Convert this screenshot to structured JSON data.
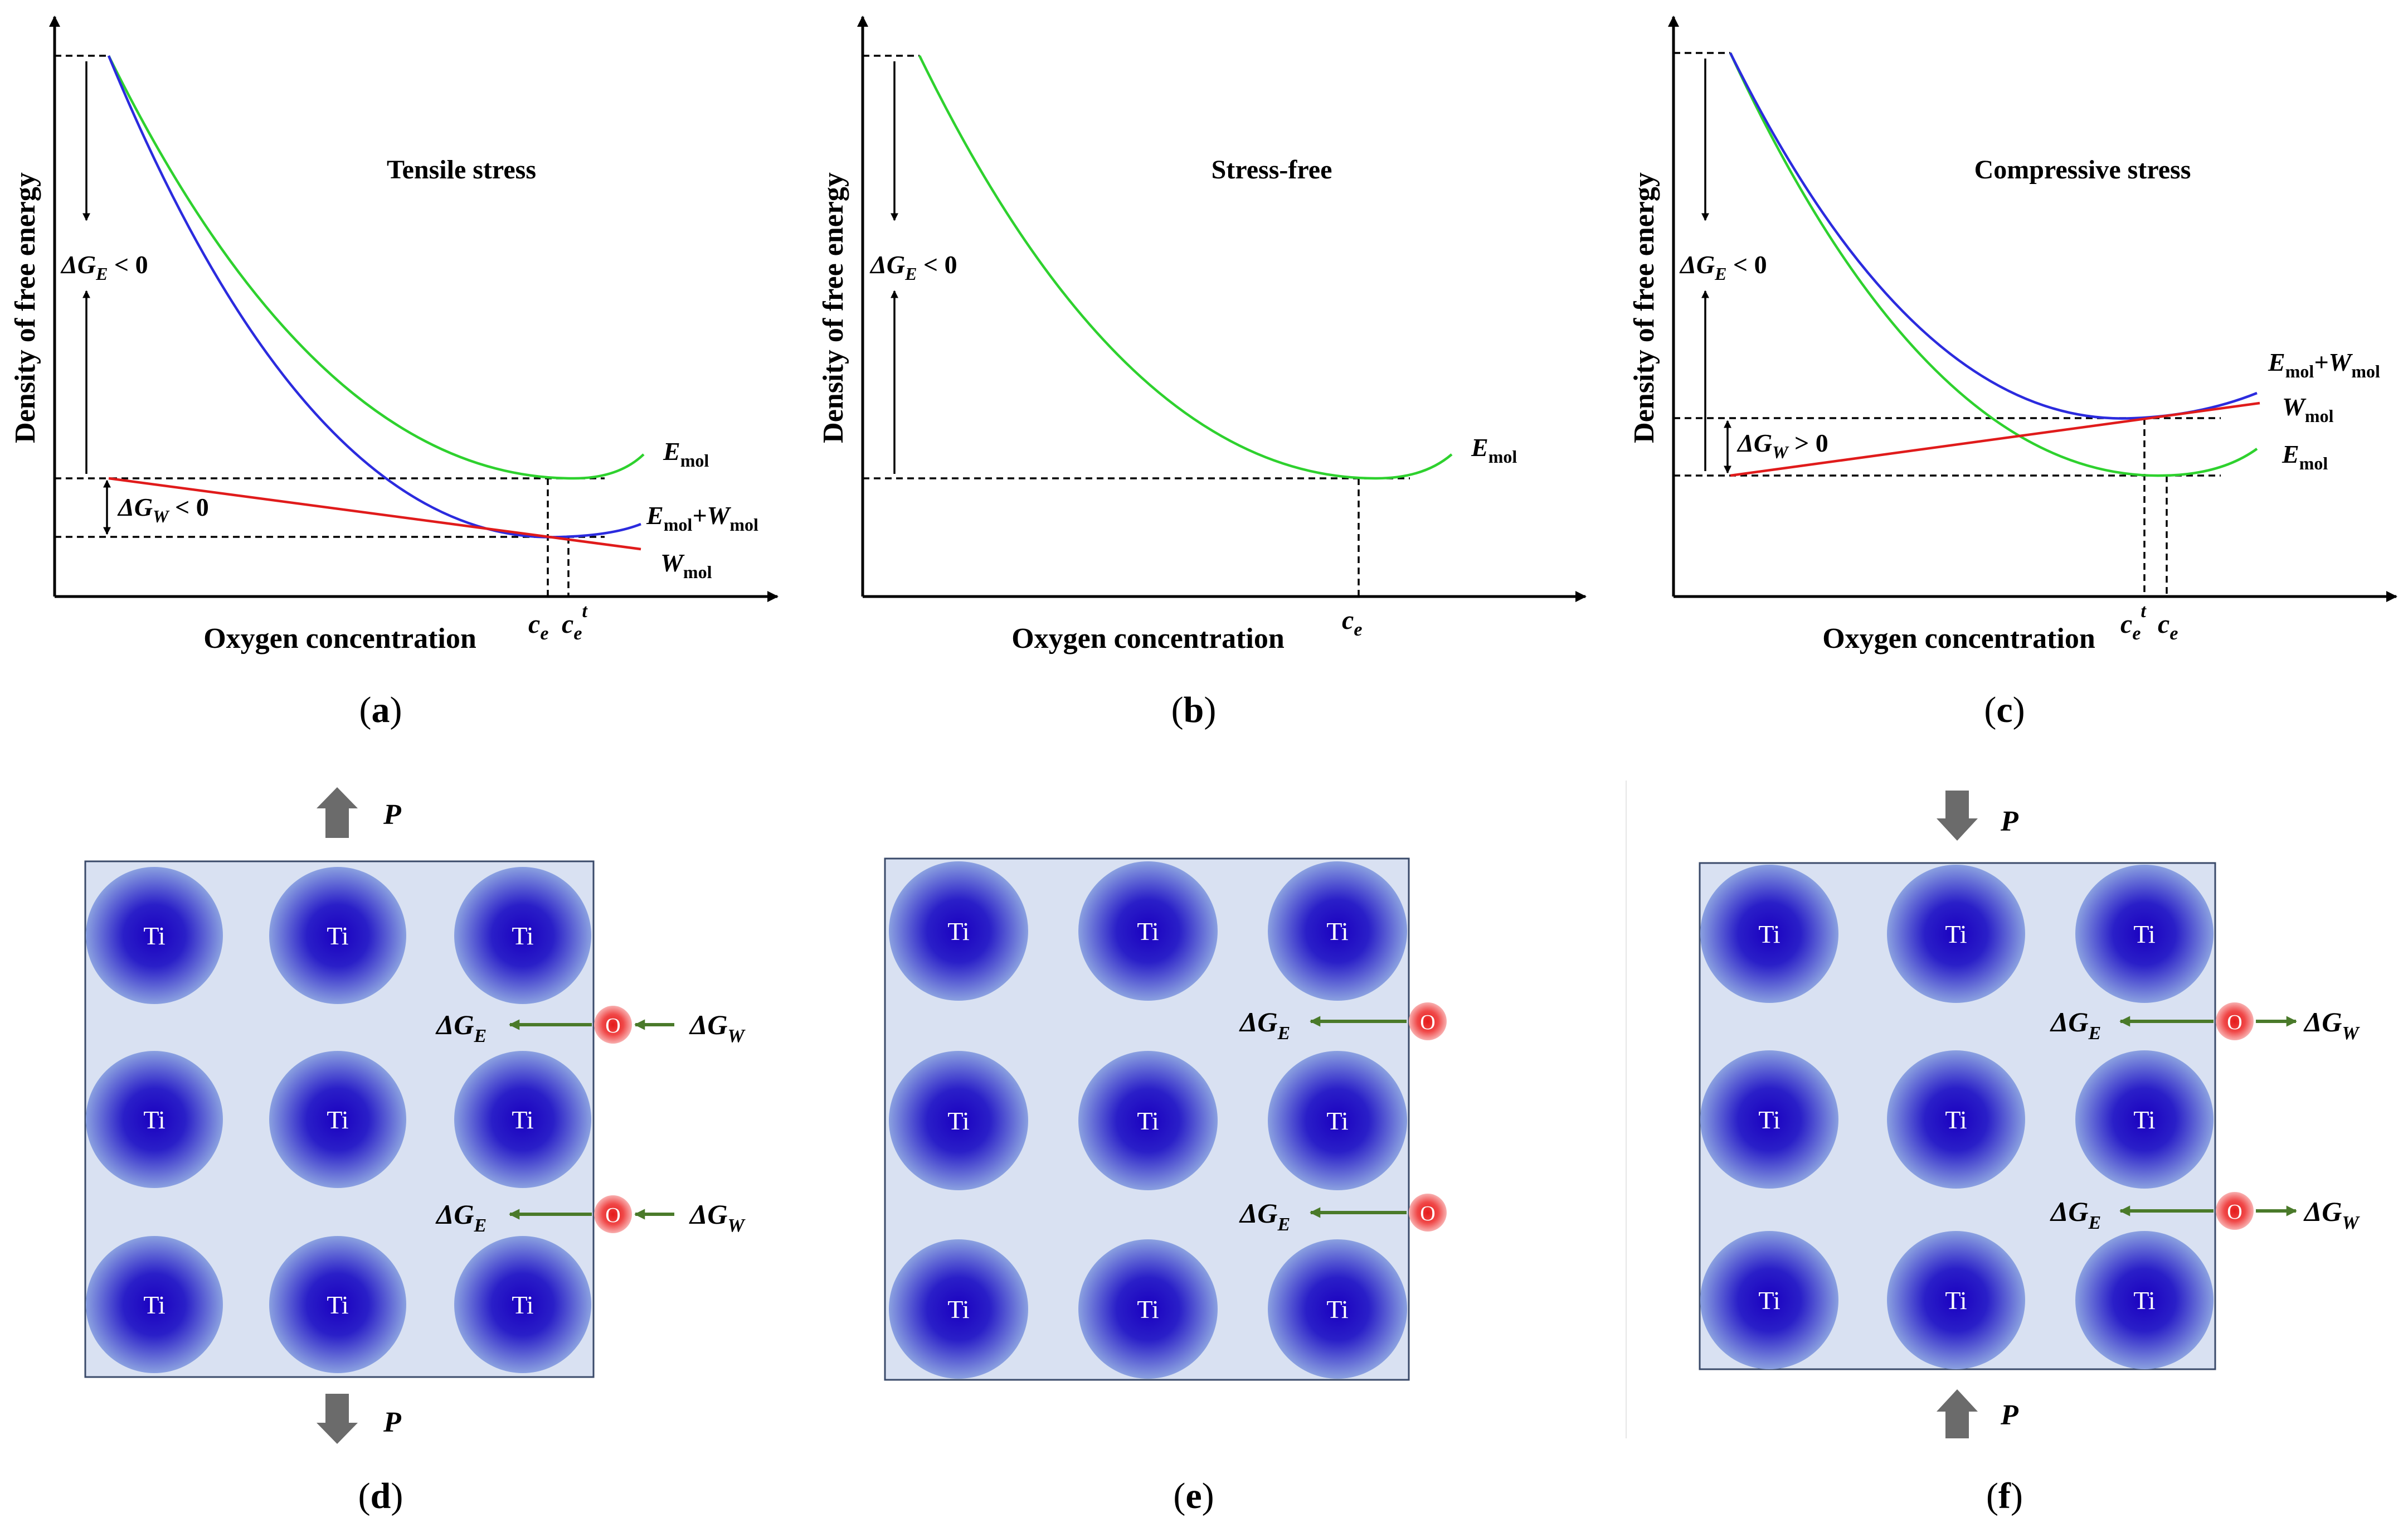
{
  "axes": {
    "ylabel": "Density of free energy",
    "xlabel": "Oxygen concentration"
  },
  "panels": {
    "a": {
      "letter": "a",
      "title": "Tensile stress",
      "dGE": "ΔG",
      "dGE_sub": "E",
      "dGE_rel": " < 0",
      "dGW": "ΔG",
      "dGW_sub": "W",
      "dGW_rel": " < 0",
      "emol_E": "E",
      "emol_sub": "mol",
      "sum_E": "E",
      "sum_sub1": "mol",
      "sum_plus": "+W",
      "sum_sub2": "mol",
      "wmol_W": "W",
      "wmol_sub": "mol",
      "ce_c": "c",
      "ce_sub": "e",
      "cet_c": "c",
      "cet_sub": "e",
      "cet_sup": "t"
    },
    "b": {
      "letter": "b",
      "title": "Stress-free",
      "dGE": "ΔG",
      "dGE_sub": "E",
      "dGE_rel": " < 0",
      "emol_E": "E",
      "emol_sub": "mol",
      "ce_c": "c",
      "ce_sub": "e"
    },
    "c": {
      "letter": "c",
      "title": "Compressive stress",
      "dGE": "ΔG",
      "dGE_sub": "E",
      "dGE_rel": " < 0",
      "dGW": "ΔG",
      "dGW_sub": "W",
      "dGW_rel": " > 0",
      "emol_E": "E",
      "emol_sub": "mol",
      "sum_E": "E",
      "sum_sub1": "mol",
      "sum_plus": "+W",
      "sum_sub2": "mol",
      "wmol_W": "W",
      "wmol_sub": "mol",
      "cet_c": "c",
      "cet_sub": "e",
      "cet_sup": "t",
      "ce_c": "c",
      "ce_sub": "e"
    },
    "d": {
      "letter": "d",
      "force": "P"
    },
    "e": {
      "letter": "e"
    },
    "f": {
      "letter": "f",
      "force": "P"
    }
  },
  "atoms": {
    "ti": "Ti",
    "o": "O"
  },
  "lattice_labels": {
    "dGE": "ΔG",
    "dGE_sub": "E",
    "dGW": "ΔG",
    "dGW_sub": "W"
  },
  "colors": {
    "green": "#2ed12e",
    "blue": "#2b2bde",
    "red": "#e01b1b",
    "arrow_green": "#4a7a2a",
    "box_fill": "#d9e1f2",
    "atom_core": "#1a00c0",
    "atom_edge": "#8aa0e0",
    "o_core": "#e51b1b",
    "force_arrow": "#6b6b6b"
  }
}
